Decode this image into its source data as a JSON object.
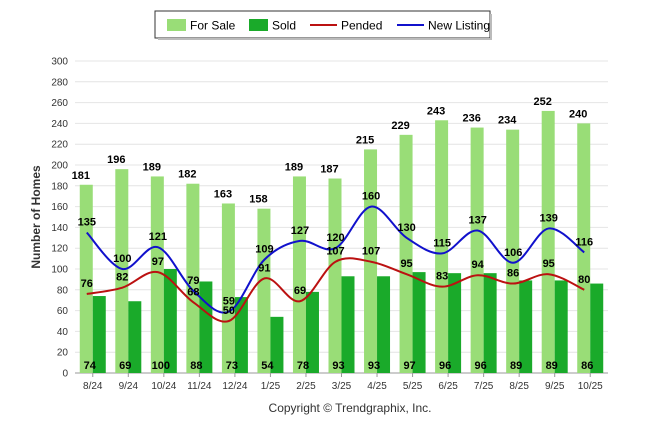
{
  "chart_data": {
    "type": "bar",
    "categories": [
      "8/24",
      "9/24",
      "10/24",
      "11/24",
      "12/24",
      "1/25",
      "2/25",
      "3/25",
      "4/25",
      "5/25",
      "6/25",
      "7/25",
      "8/25",
      "9/25",
      "10/25"
    ],
    "series": [
      {
        "name": "For Sale",
        "kind": "bar",
        "color": "#99dd77",
        "values": [
          181,
          196,
          189,
          182,
          163,
          158,
          189,
          187,
          215,
          229,
          243,
          236,
          234,
          252,
          240
        ]
      },
      {
        "name": "Sold",
        "kind": "bar",
        "color": "#1aaa2a",
        "values": [
          74,
          69,
          100,
          88,
          73,
          54,
          78,
          93,
          93,
          97,
          96,
          96,
          89,
          89,
          86
        ]
      },
      {
        "name": "Pended",
        "kind": "line",
        "color": "#bb1111",
        "values": [
          76,
          82,
          97,
          68,
          50,
          91,
          69,
          107,
          107,
          95,
          83,
          94,
          86,
          95,
          80
        ]
      },
      {
        "name": "New Listing",
        "kind": "line",
        "color": "#1111cc",
        "values": [
          135,
          100,
          121,
          79,
          59,
          109,
          127,
          120,
          160,
          130,
          115,
          137,
          106,
          139,
          116
        ]
      }
    ],
    "ylabel": "Number of Homes",
    "xlabel": "",
    "ylim": [
      0,
      300
    ],
    "yticks": [
      0,
      20,
      40,
      60,
      80,
      100,
      120,
      140,
      160,
      180,
      200,
      220,
      240,
      260,
      280,
      300
    ],
    "grid": true,
    "legend_position": "top-center",
    "credit": "Copyright © Trendgraphix, Inc."
  }
}
